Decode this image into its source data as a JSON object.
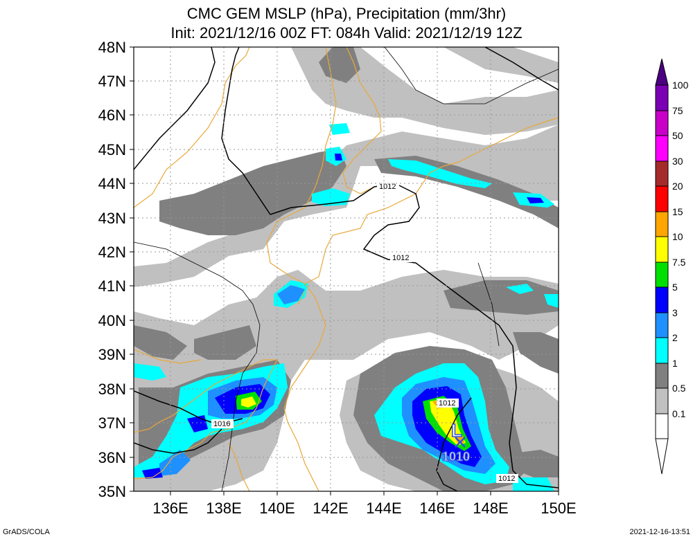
{
  "title_line1": "CMC GEM MSLP (hPa), Precipitation (mm/3hr)",
  "title_line2": "Init: 2021/12/16 00Z  FT: 084h  Valid: 2021/12/19 12Z",
  "lat_labels": [
    "48N",
    "47N",
    "46N",
    "45N",
    "44N",
    "43N",
    "42N",
    "41N",
    "40N",
    "39N",
    "38N",
    "37N",
    "36N",
    "35N"
  ],
  "lon_labels": [
    "136E",
    "138E",
    "140E",
    "142E",
    "144E",
    "146E",
    "148E",
    "150E"
  ],
  "colorbar_labels": [
    "100",
    "75",
    "50",
    "30",
    "20",
    "15",
    "10",
    "7.5",
    "5",
    "3",
    "2",
    "1",
    "0.5",
    "0.1"
  ],
  "colorbar_colors": [
    "#4b0082",
    "#7b00b4",
    "#c800c8",
    "#ff00ff",
    "#a52a2a",
    "#ff0000",
    "#ffa500",
    "#ffff00",
    "#00e000",
    "#0000ff",
    "#1e90ff",
    "#00ffff",
    "#808080",
    "#c0c0c0",
    "#ffffff"
  ],
  "isobar_labels": [
    "1012",
    "1012",
    "1012",
    "1016",
    "1012"
  ],
  "low_marker": {
    "symbol": "L",
    "pressure": "1010"
  },
  "footer_left": "GrADS/COLA",
  "footer_right": "2021-12-16-13:51",
  "colors": {
    "coast": "#e8a838",
    "isobar": "#000000",
    "low": "#3050e0",
    "precip_light": "#c0c0c0",
    "precip_mid": "#808080"
  }
}
